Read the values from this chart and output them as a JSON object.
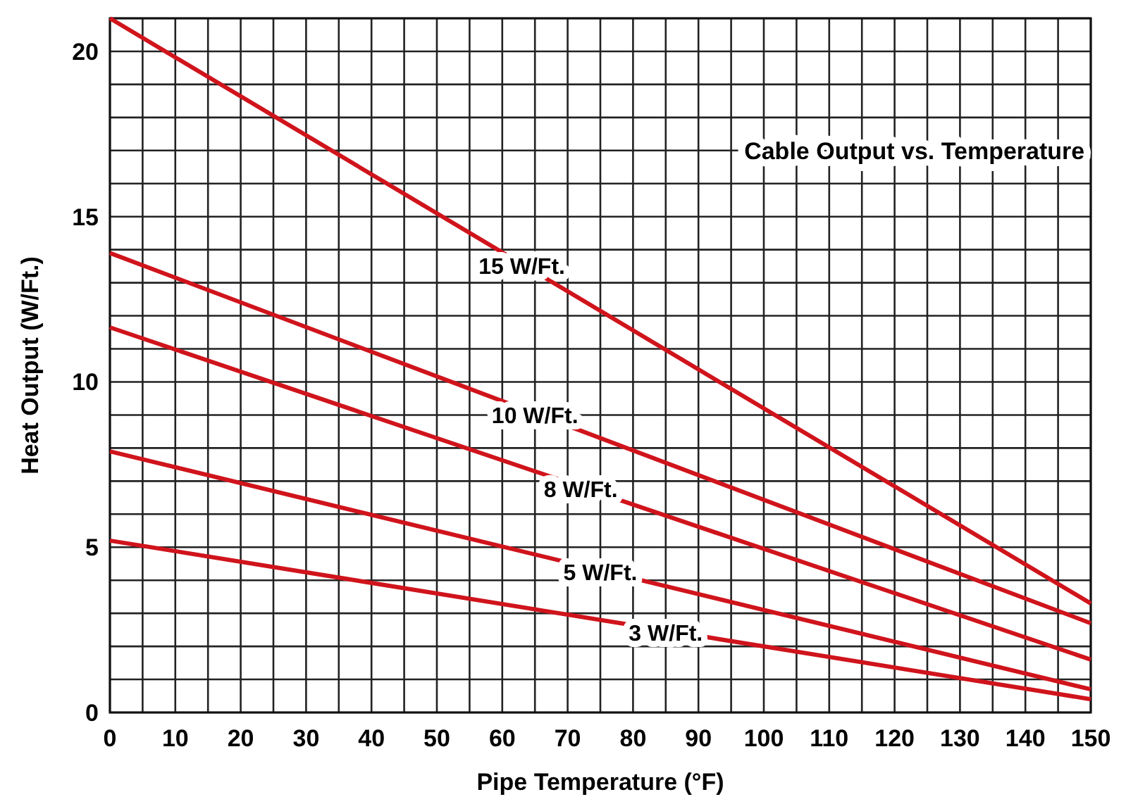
{
  "chart_data": {
    "type": "line",
    "title": "Cable Output vs. Temperature",
    "xlabel": "Pipe Temperature (°F)",
    "ylabel": "Heat Output (W/Ft.)",
    "x": [
      0,
      150
    ],
    "series": [
      {
        "name": "15 W/Ft.",
        "color": "#d0141c",
        "values": [
          21,
          3.3
        ]
      },
      {
        "name": "10 W/Ft.",
        "color": "#d0141c",
        "values": [
          13.9,
          2.7
        ]
      },
      {
        "name": "8 W/Ft.",
        "color": "#d0141c",
        "values": [
          11.65,
          1.6
        ]
      },
      {
        "name": "5 W/Ft.",
        "color": "#d0141c",
        "values": [
          7.9,
          0.7
        ]
      },
      {
        "name": "3 W/Ft.",
        "color": "#d0141c",
        "values": [
          5.2,
          0.4
        ]
      }
    ],
    "xlim": [
      0,
      150
    ],
    "ylim": [
      0,
      21
    ],
    "xticks": [
      0,
      10,
      20,
      30,
      40,
      50,
      60,
      70,
      80,
      90,
      100,
      110,
      120,
      130,
      140,
      150
    ],
    "yticks": [
      0,
      5,
      10,
      15,
      20
    ],
    "grid": true,
    "marker": "none",
    "line_style": "solid"
  }
}
